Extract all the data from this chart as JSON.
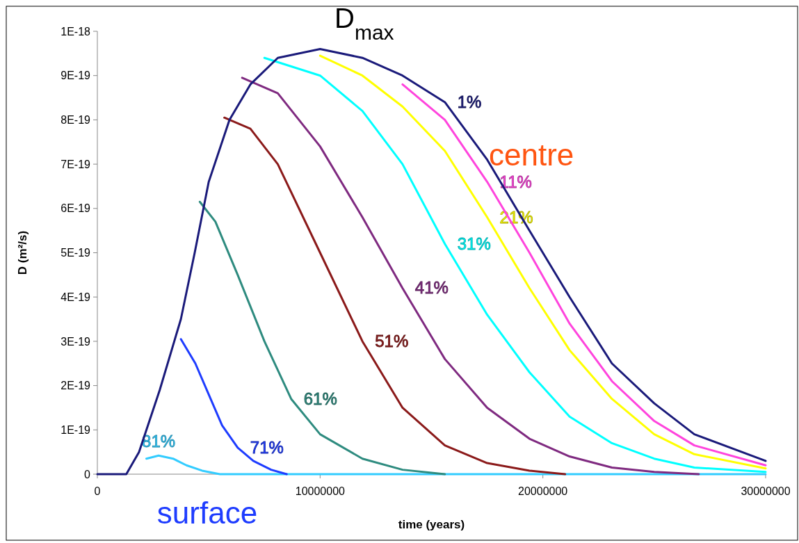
{
  "chart_data": {
    "type": "line",
    "title": "D$_{max}$",
    "xlabel": "time (years)",
    "ylabel": "D (m²/s)",
    "xlim": [
      0,
      30000000
    ],
    "xticks": [
      0,
      10000000,
      20000000,
      30000000
    ],
    "ylim": [
      0,
      1e-18
    ],
    "yticks": [
      0,
      {
        "value": 1e-19,
        "label": "1E-19"
      },
      {
        "value": 2e-19,
        "label": "2E-19"
      },
      {
        "value": 3e-19,
        "label": "3E-19"
      },
      {
        "value": 4e-19,
        "label": "4E-19"
      },
      {
        "value": 5e-19,
        "label": "5E-19"
      },
      {
        "value": 6e-19,
        "label": "6E-19"
      },
      {
        "value": 7e-19,
        "label": "7E-19"
      },
      {
        "value": 8e-19,
        "label": "8E-19"
      },
      {
        "value": 9e-19,
        "label": "9E-19"
      },
      {
        "value": 1e-18,
        "label": "1E-18"
      }
    ],
    "grid": false,
    "annotations": [
      "centre",
      "surface"
    ],
    "series": [
      {
        "name": "1%",
        "color": "#1a1a7a",
        "x": [
          0,
          1300000,
          1870000,
          2800000,
          3750000,
          4370000,
          5000000,
          5930000,
          6870000,
          8100000,
          10000000,
          11900000,
          13700000,
          15600000,
          17500000,
          19400000,
          21200000,
          23100000,
          25000000,
          26800000,
          30000000
        ],
        "values": [
          0,
          0,
          5e-20,
          1.9e-19,
          3.5e-19,
          5e-19,
          6.6e-19,
          8e-19,
          8.8e-19,
          9.4e-19,
          9.6e-19,
          9.4e-19,
          9e-19,
          8.4e-19,
          7.1e-19,
          5.5e-19,
          4e-19,
          2.5e-19,
          1.6e-19,
          9e-20,
          3e-20
        ]
      },
      {
        "name": "11%",
        "color": "#ff44dd",
        "x": [
          13700000,
          15600000,
          17500000,
          19400000,
          21200000,
          23100000,
          25000000,
          26800000,
          30000000
        ],
        "values": [
          8.8e-19,
          8e-19,
          6.6e-19,
          5e-19,
          3.4e-19,
          2.1e-19,
          1.2e-19,
          6.5e-20,
          2e-20
        ]
      },
      {
        "name": "21%",
        "color": "#ffff00",
        "x": [
          10000000,
          11900000,
          13700000,
          15600000,
          17500000,
          19400000,
          21200000,
          23100000,
          25000000,
          26800000,
          30000000
        ],
        "values": [
          9.45e-19,
          9e-19,
          8.3e-19,
          7.3e-19,
          5.8e-19,
          4.2e-19,
          2.8e-19,
          1.7e-19,
          9e-20,
          4.5e-20,
          1.3e-20
        ]
      },
      {
        "name": "31%",
        "color": "#00ffff",
        "x": [
          7500000,
          10000000,
          11900000,
          13700000,
          15600000,
          17500000,
          19400000,
          21200000,
          23100000,
          25000000,
          26800000,
          30000000
        ],
        "values": [
          9.4e-19,
          9e-19,
          8.2e-19,
          7e-19,
          5.2e-19,
          3.6e-19,
          2.3e-19,
          1.3e-19,
          7e-20,
          3.5e-20,
          1.5e-20,
          5e-21
        ]
      },
      {
        "name": "41%",
        "color": "#7f2a80",
        "x": [
          6500000,
          8100000,
          10000000,
          11900000,
          13700000,
          15600000,
          17500000,
          19400000,
          21200000,
          23100000,
          25000000,
          27000000
        ],
        "values": [
          8.95e-19,
          8.6e-19,
          7.4e-19,
          5.8e-19,
          4.2e-19,
          2.6e-19,
          1.5e-19,
          8e-20,
          4e-20,
          1.5e-20,
          5e-21,
          0
        ]
      },
      {
        "name": "51%",
        "color": "#8b1a1a",
        "x": [
          5700000,
          6870000,
          8100000,
          10000000,
          11900000,
          13700000,
          15600000,
          17500000,
          19400000,
          21000000
        ],
        "values": [
          8.05e-19,
          7.8e-19,
          7e-19,
          5e-19,
          3e-19,
          1.5e-19,
          6.5e-20,
          2.5e-20,
          8e-21,
          0
        ]
      },
      {
        "name": "61%",
        "color": "#2e8b7f",
        "x": [
          4600000,
          5300000,
          6300000,
          7500000,
          8700000,
          10000000,
          11900000,
          13700000,
          15600000
        ],
        "values": [
          6.15e-19,
          5.7e-19,
          4.5e-19,
          3e-19,
          1.7e-19,
          9e-20,
          3.5e-20,
          1e-20,
          0
        ]
      },
      {
        "name": "71%",
        "color": "#1e3cff",
        "x": [
          3750000,
          4400000,
          5000000,
          5600000,
          6300000,
          7000000,
          7800000,
          8500000
        ],
        "values": [
          3.05e-19,
          2.5e-19,
          1.8e-19,
          1.1e-19,
          6e-20,
          3e-20,
          1e-20,
          0
        ]
      },
      {
        "name": "81%",
        "color": "#33ccff",
        "x": [
          2200000,
          2750000,
          3400000,
          4000000,
          4700000,
          5500000,
          30000000
        ],
        "values": [
          3.5e-20,
          4.2e-20,
          3.5e-20,
          2e-20,
          8e-21,
          0,
          0
        ]
      }
    ]
  }
}
